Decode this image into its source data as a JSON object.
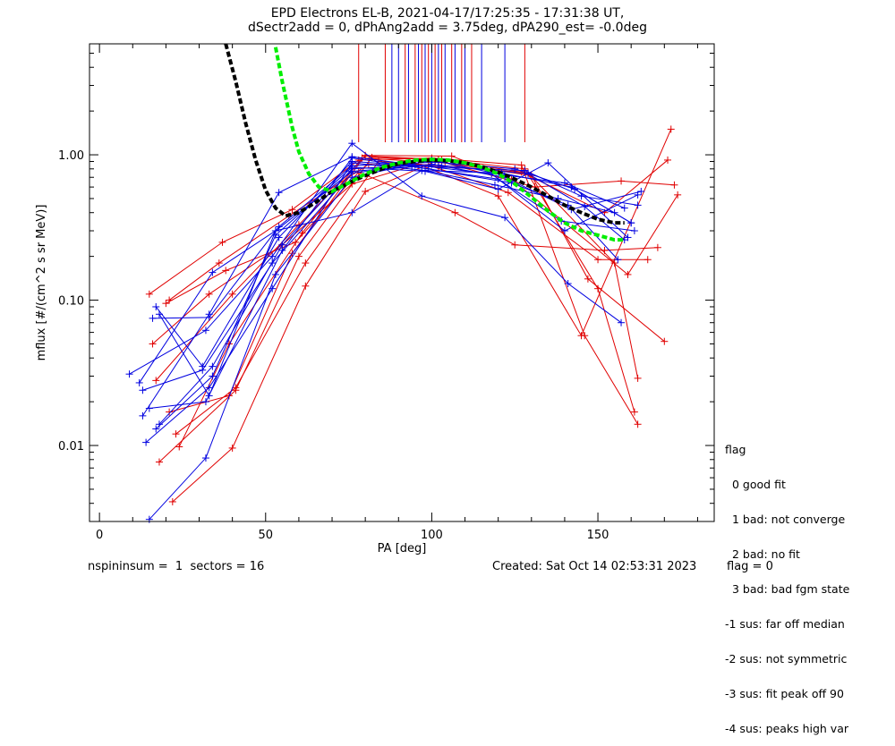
{
  "title_line1": "EPD Electrons EL-B, 2021-04-17/17:25:35 - 17:31:38 UT,",
  "title_line2": "dSectr2add = 0, dPhAng2add = 3.75deg, dPA290_est=  -0.0deg",
  "footer": {
    "left": "nspininsum =  1  sectors = 16",
    "created": "Created: Sat Oct 14 02:53:31 2023",
    "flag": "flag = 0"
  },
  "legend": {
    "title": "flag",
    "items": [
      "0 good fit",
      "1 bad: not converge",
      "2 bad: no fit",
      "3 bad: bad fgm state",
      "-1 sus: far off median",
      "-2 sus: not symmetric",
      "-3 sus: fit peak off 90",
      "-4 sus: peaks high var"
    ]
  },
  "colors": {
    "red": "#e00000",
    "blue": "#0000e0",
    "black": "#000000",
    "green": "#00ee00"
  },
  "chart_data": {
    "type": "line",
    "xlabel": "PA [deg]",
    "ylabel": "mflux [#/(cm^2 s sr MeV)]",
    "xlim": [
      -3,
      185
    ],
    "ylim": [
      0.003,
      5.8
    ],
    "yscale": "log",
    "xticks": [
      0,
      50,
      100,
      150
    ],
    "xtick_labels": [
      "0",
      "50",
      "100",
      "150"
    ],
    "yticks": [
      0.01,
      0.1,
      1.0
    ],
    "ytick_labels": [
      "0.01",
      "0.10",
      "1.00"
    ],
    "series": [
      {
        "color": "red",
        "marker": "+",
        "x": [
          15,
          37,
          58,
          78,
          100,
          127,
          146,
          162
        ],
        "y": [
          0.11,
          0.25,
          0.42,
          0.92,
          0.95,
          0.85,
          0.057,
          0.014
        ]
      },
      {
        "color": "red",
        "marker": "+",
        "x": [
          17,
          40,
          60,
          80,
          102,
          128,
          150,
          161
        ],
        "y": [
          0.028,
          0.11,
          0.33,
          0.98,
          0.93,
          0.8,
          0.12,
          0.017
        ]
      },
      {
        "color": "red",
        "marker": "+",
        "x": [
          18,
          41,
          60,
          82,
          103,
          129,
          155,
          162
        ],
        "y": [
          0.0077,
          0.024,
          0.2,
          0.96,
          0.92,
          0.75,
          0.18,
          0.029
        ]
      },
      {
        "color": "red",
        "marker": "+",
        "x": [
          22,
          40,
          62,
          80,
          101,
          130,
          147,
          170
        ],
        "y": [
          0.0041,
          0.0096,
          0.125,
          0.56,
          0.9,
          0.72,
          0.14,
          0.052
        ]
      },
      {
        "color": "red",
        "marker": "+",
        "x": [
          16,
          33,
          55,
          76,
          96,
          120,
          145,
          172
        ],
        "y": [
          0.05,
          0.11,
          0.24,
          0.63,
          0.86,
          0.52,
          0.057,
          1.5
        ]
      },
      {
        "color": "red",
        "marker": "+",
        "x": [
          20,
          38,
          59,
          78,
          107,
          125,
          152,
          168
        ],
        "y": [
          0.095,
          0.16,
          0.25,
          0.76,
          0.4,
          0.24,
          0.22,
          0.23
        ]
      },
      {
        "color": "red",
        "marker": "+",
        "x": [
          23,
          41,
          62,
          84,
          99,
          123,
          150,
          165
        ],
        "y": [
          0.012,
          0.025,
          0.18,
          0.9,
          0.85,
          0.55,
          0.19,
          0.19
        ]
      },
      {
        "color": "red",
        "marker": "+",
        "x": [
          24,
          39,
          61,
          79,
          104,
          131,
          157,
          173
        ],
        "y": [
          0.0098,
          0.05,
          0.29,
          0.95,
          0.88,
          0.6,
          0.66,
          0.62
        ]
      },
      {
        "color": "red",
        "marker": "+",
        "x": [
          21,
          36,
          57,
          81,
          102,
          127,
          152,
          171
        ],
        "y": [
          0.1,
          0.18,
          0.38,
          0.86,
          0.83,
          0.76,
          0.4,
          0.92
        ]
      },
      {
        "color": "red",
        "marker": "+",
        "x": [
          21,
          39,
          58,
          80,
          106,
          124,
          159,
          174
        ],
        "y": [
          0.017,
          0.022,
          0.21,
          0.99,
          0.98,
          0.68,
          0.15,
          0.53
        ]
      },
      {
        "color": "blue",
        "marker": "+",
        "x": [
          9,
          32,
          52,
          76,
          97,
          122,
          141,
          157
        ],
        "y": [
          0.031,
          0.062,
          0.2,
          1.2,
          0.52,
          0.37,
          0.13,
          0.07
        ]
      },
      {
        "color": "blue",
        "marker": "+",
        "x": [
          12,
          34,
          53,
          76,
          97,
          121,
          142,
          160
        ],
        "y": [
          0.027,
          0.155,
          0.3,
          0.4,
          0.78,
          0.75,
          0.6,
          0.34
        ]
      },
      {
        "color": "blue",
        "marker": "+",
        "x": [
          13,
          33,
          54,
          76,
          95,
          118,
          140,
          162
        ],
        "y": [
          0.016,
          0.08,
          0.55,
          0.97,
          0.85,
          0.74,
          0.3,
          0.53
        ]
      },
      {
        "color": "blue",
        "marker": "+",
        "x": [
          14,
          33,
          52,
          76,
          98,
          119,
          138,
          155
        ],
        "y": [
          0.0105,
          0.025,
          0.12,
          0.88,
          0.78,
          0.62,
          0.5,
          0.4
        ]
      },
      {
        "color": "blue",
        "marker": "+",
        "x": [
          15,
          32,
          53,
          76,
          100,
          121,
          140,
          158
        ],
        "y": [
          0.0031,
          0.0082,
          0.15,
          0.7,
          0.92,
          0.73,
          0.64,
          0.43
        ]
      },
      {
        "color": "blue",
        "marker": "+",
        "x": [
          16,
          33,
          54,
          76,
          101,
          125,
          143,
          160
        ],
        "y": [
          0.075,
          0.076,
          0.32,
          0.84,
          0.89,
          0.8,
          0.58,
          0.34
        ]
      },
      {
        "color": "blue",
        "marker": "+",
        "x": [
          18,
          34,
          55,
          76,
          100,
          122,
          142,
          163
        ],
        "y": [
          0.014,
          0.035,
          0.24,
          0.8,
          0.86,
          0.7,
          0.42,
          0.56
        ]
      },
      {
        "color": "blue",
        "marker": "+",
        "x": [
          13,
          31,
          52,
          76,
          94,
          120,
          139,
          161
        ],
        "y": [
          0.024,
          0.033,
          0.18,
          0.75,
          0.83,
          0.68,
          0.35,
          0.3
        ]
      },
      {
        "color": "blue",
        "marker": "+",
        "x": [
          17,
          31,
          54,
          76,
          103,
          128,
          145,
          162
        ],
        "y": [
          0.09,
          0.035,
          0.27,
          0.9,
          0.82,
          0.78,
          0.52,
          0.45
        ]
      },
      {
        "color": "blue",
        "marker": "+",
        "x": [
          18,
          33,
          53,
          76,
          102,
          129,
          146,
          158
        ],
        "y": [
          0.08,
          0.022,
          0.3,
          0.77,
          0.85,
          0.74,
          0.44,
          0.26
        ]
      },
      {
        "color": "blue",
        "marker": "+",
        "x": [
          15,
          32,
          55,
          76,
          99,
          124,
          141,
          156
        ],
        "y": [
          0.018,
          0.02,
          0.22,
          0.95,
          0.8,
          0.64,
          0.45,
          0.19
        ]
      },
      {
        "color": "blue",
        "marker": "+",
        "x": [
          17,
          34,
          53,
          76,
          98,
          120,
          135,
          159
        ],
        "y": [
          0.013,
          0.03,
          0.28,
          0.82,
          0.77,
          0.58,
          0.88,
          0.27
        ]
      }
    ],
    "fits": [
      {
        "color": "black",
        "style": "dashed",
        "x": [
          38,
          41,
          44,
          47,
          50,
          53,
          56,
          60,
          65,
          70,
          75,
          80,
          85,
          90,
          95,
          100,
          105,
          110,
          115,
          120,
          125,
          130,
          135,
          140,
          145,
          150,
          155,
          158
        ],
        "y": [
          5.8,
          3.2,
          1.65,
          0.92,
          0.57,
          0.43,
          0.38,
          0.4,
          0.47,
          0.56,
          0.64,
          0.72,
          0.8,
          0.87,
          0.9,
          0.92,
          0.91,
          0.88,
          0.83,
          0.76,
          0.68,
          0.6,
          0.52,
          0.45,
          0.4,
          0.36,
          0.34,
          0.34
        ]
      },
      {
        "color": "green",
        "style": "dashed",
        "x": [
          53,
          55,
          58,
          60,
          63,
          66,
          70,
          75,
          80,
          85,
          90,
          95,
          100,
          105,
          110,
          115,
          120,
          125,
          130,
          135,
          140,
          145,
          150,
          155,
          158
        ],
        "y": [
          5.5,
          3.2,
          1.55,
          1.05,
          0.74,
          0.6,
          0.56,
          0.64,
          0.74,
          0.82,
          0.88,
          0.92,
          0.93,
          0.92,
          0.88,
          0.82,
          0.74,
          0.63,
          0.51,
          0.41,
          0.34,
          0.3,
          0.28,
          0.26,
          0.26
        ]
      }
    ],
    "vertical_markers": {
      "top": 5.8,
      "bottom": 1.22,
      "red_x": [
        78,
        86,
        92,
        95,
        97,
        99,
        101,
        103,
        106,
        109,
        112,
        128
      ],
      "blue_x": [
        88,
        90,
        93,
        96,
        98,
        100,
        102,
        104,
        107,
        110,
        115,
        122
      ]
    }
  }
}
